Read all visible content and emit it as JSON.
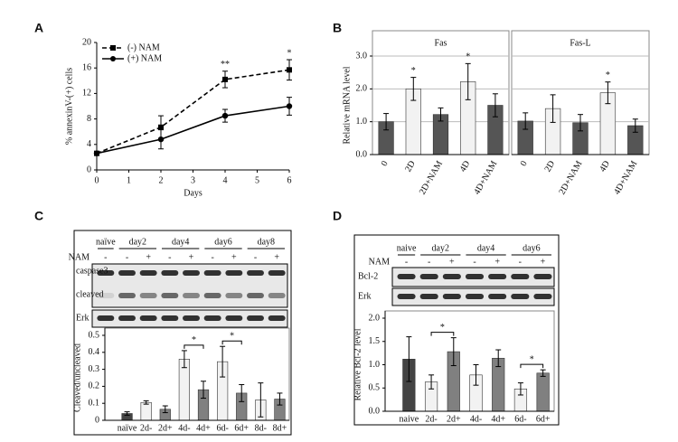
{
  "chart_data": [
    {
      "type": "line",
      "panel": "A",
      "xlabel": "Days",
      "ylabel": "% annexinV-(+) cells",
      "x": [
        0,
        2,
        4,
        6
      ],
      "xlim": [
        0,
        6
      ],
      "xticks": [
        0,
        1,
        2,
        3,
        4,
        5,
        6
      ],
      "ylim": [
        0,
        20
      ],
      "yticks": [
        0,
        4,
        8,
        12,
        16,
        20
      ],
      "legend": "upper left",
      "series": [
        {
          "name": "(-) NAM",
          "color": "#000000",
          "line_style": "dashed",
          "marker": "square",
          "values": [
            2.6,
            6.7,
            14.2,
            15.7
          ],
          "errors": [
            0.3,
            1.8,
            1.3,
            1.6
          ]
        },
        {
          "name": "(+) NAM",
          "color": "#000000",
          "line_style": "solid",
          "marker": "circle",
          "values": [
            2.6,
            4.8,
            8.5,
            10.0
          ],
          "errors": [
            0.3,
            1.5,
            1.0,
            1.4
          ]
        }
      ],
      "annotations": [
        {
          "text": "**",
          "x": 4
        },
        {
          "text": "*",
          "x": 6
        }
      ]
    },
    {
      "type": "bar",
      "panel": "B",
      "ylabel": "Relative mRNA level",
      "categories": [
        "0",
        "2D",
        "2D+NAM",
        "4D",
        "4D+NAM"
      ],
      "colors": [
        "#555555",
        "#f2f2f2",
        "#555555",
        "#f2f2f2",
        "#555555"
      ],
      "ylim": [
        0,
        3
      ],
      "yticks": [
        {
          "value": 0,
          "label": "0.0"
        },
        {
          "value": 1,
          "label": "1.0"
        },
        {
          "value": 2,
          "label": "2.0"
        },
        {
          "value": 3,
          "label": "3.0"
        }
      ],
      "grid": true,
      "panels": [
        {
          "title": "Fas",
          "values": [
            1.0,
            2.0,
            1.22,
            2.22,
            1.5
          ],
          "errors": [
            0.25,
            0.35,
            0.2,
            0.55,
            0.35
          ],
          "annotations": [
            {
              "text": "*",
              "over": "2D"
            },
            {
              "text": "*",
              "over": "4D"
            }
          ]
        },
        {
          "title": "Fas-L",
          "values": [
            1.02,
            1.4,
            0.97,
            1.88,
            0.88
          ],
          "errors": [
            0.25,
            0.42,
            0.25,
            0.33,
            0.2
          ],
          "annotations": [
            {
              "text": "*",
              "over": "4D"
            }
          ]
        }
      ]
    },
    {
      "type": "bar",
      "panel": "C",
      "ylabel": "Cleaved/uncleaved",
      "blot": {
        "groups": [
          "naïve",
          "day2",
          "day4",
          "day6",
          "day8"
        ],
        "nam_label": "NAM",
        "nam": [
          "-",
          "-",
          "+",
          "-",
          "+",
          "-",
          "+",
          "-",
          "+"
        ],
        "bands": [
          "caspase3",
          "cleaved",
          "Erk"
        ]
      },
      "categories": [
        "naïve",
        "2d-",
        "2d+",
        "4d-",
        "4d+",
        "6d-",
        "6d+",
        "8d-",
        "8d+"
      ],
      "colors": [
        "#444444",
        "#f2f2f2",
        "#808080",
        "#f2f2f2",
        "#808080",
        "#f2f2f2",
        "#808080",
        "#f2f2f2",
        "#808080"
      ],
      "values": [
        0.04,
        0.105,
        0.065,
        0.36,
        0.18,
        0.345,
        0.16,
        0.12,
        0.125
      ],
      "errors": [
        0.01,
        0.01,
        0.02,
        0.05,
        0.05,
        0.09,
        0.05,
        0.1,
        0.035
      ],
      "ylim": [
        0,
        0.5
      ],
      "yticks": [
        0,
        0.1,
        0.2,
        0.3,
        0.4,
        0.5
      ],
      "annotations": [
        {
          "text": "*",
          "between": [
            "4d-",
            "4d+"
          ]
        },
        {
          "text": "*",
          "between": [
            "6d-",
            "6d+"
          ]
        }
      ]
    },
    {
      "type": "bar",
      "panel": "D",
      "ylabel": "Relative Bcl-2 level",
      "blot": {
        "groups": [
          "naive",
          "day2",
          "day4",
          "day6"
        ],
        "nam_label": "NAM",
        "nam": [
          "-",
          "-",
          "+",
          "-",
          "+",
          "-",
          "+"
        ],
        "bands": [
          "Bcl-2",
          "Erk"
        ]
      },
      "categories": [
        "naive",
        "2d-",
        "2d+",
        "4d-",
        "4d+",
        "6d-",
        "6d+"
      ],
      "colors": [
        "#444444",
        "#f2f2f2",
        "#808080",
        "#f2f2f2",
        "#808080",
        "#f2f2f2",
        "#808080"
      ],
      "values": [
        1.12,
        0.63,
        1.28,
        0.78,
        1.14,
        0.48,
        0.82
      ],
      "errors": [
        0.48,
        0.15,
        0.3,
        0.22,
        0.18,
        0.13,
        0.07
      ],
      "ylim": [
        0,
        2
      ],
      "yticks": [
        {
          "value": 0,
          "label": "0.0"
        },
        {
          "value": 0.5,
          "label": "0.5"
        },
        {
          "value": 1,
          "label": "1.0"
        },
        {
          "value": 1.5,
          "label": "1.5"
        },
        {
          "value": 2,
          "label": "2.0"
        }
      ],
      "annotations": [
        {
          "text": "*",
          "between": [
            "2d-",
            "2d+"
          ]
        },
        {
          "text": "*",
          "between": [
            "6d-",
            "6d+"
          ]
        }
      ]
    }
  ]
}
